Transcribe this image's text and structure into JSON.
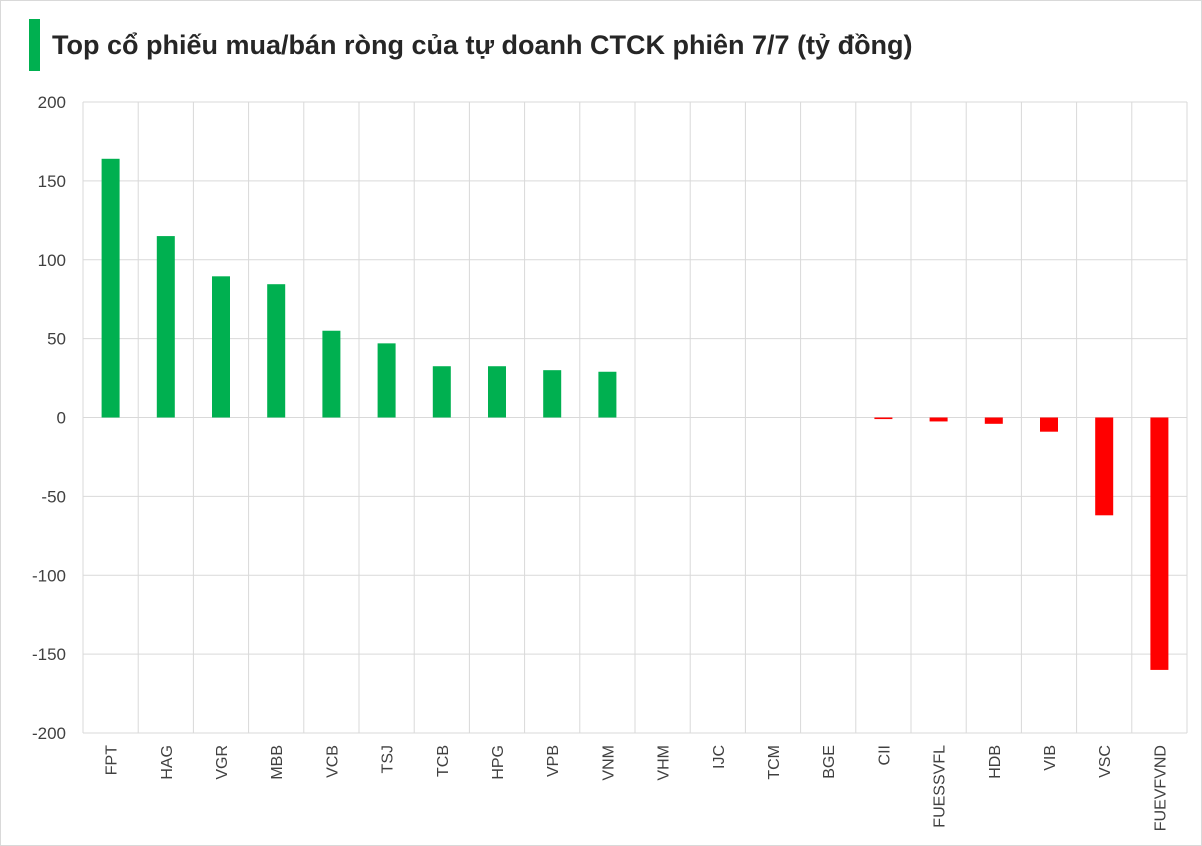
{
  "colors": {
    "accent": "#00B050",
    "positive": "#00B050",
    "negative": "#FF0000",
    "grid": "#d9d9d9"
  },
  "chart_data": {
    "type": "bar",
    "title": "Top cổ phiếu mua/bán ròng của tự doanh CTCK phiên 7/7 (tỷ đồng)",
    "xlabel": "",
    "ylabel": "",
    "ylim": [
      -200,
      200
    ],
    "yticks": [
      200,
      150,
      100,
      50,
      0,
      -50,
      -100,
      -150,
      -200
    ],
    "grid": true,
    "legend": "none",
    "categories": [
      "FPT",
      "HAG",
      "VGR",
      "MBB",
      "VCB",
      "TSJ",
      "TCB",
      "HPG",
      "VPB",
      "VNM",
      "VHM",
      "IJC",
      "TCM",
      "BGE",
      "CII",
      "FUESSVFL",
      "HDB",
      "VIB",
      "VSC",
      "FUEVFVND"
    ],
    "values": [
      164,
      115,
      89.5,
      84.5,
      55,
      47,
      32.5,
      32.5,
      30,
      29,
      0,
      0,
      0,
      0,
      -1,
      -2.5,
      -4,
      -9,
      -62,
      -160
    ]
  }
}
